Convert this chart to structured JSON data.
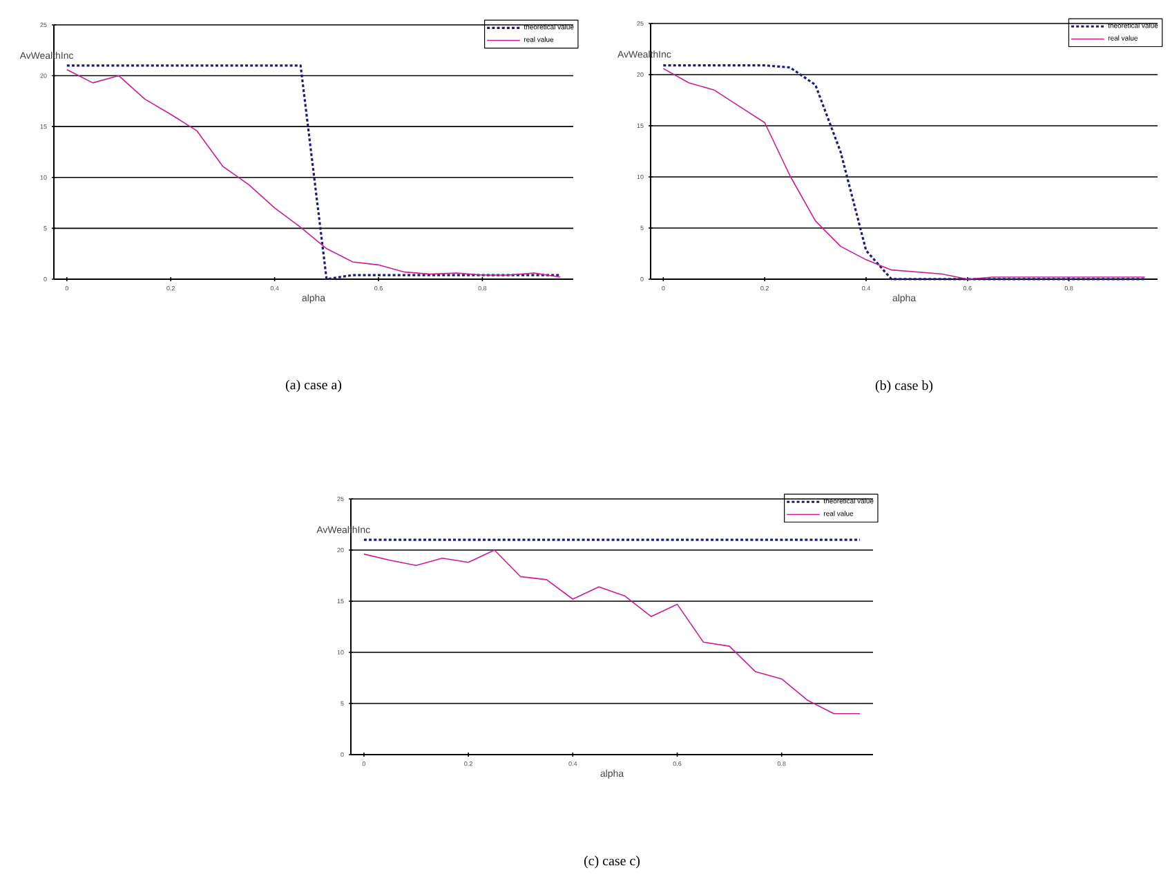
{
  "chart_data": [
    {
      "type": "line",
      "xlabel": "alpha",
      "ylabel": "AvWealthInc",
      "annotations": [
        "(a) case a)"
      ],
      "x": [
        0,
        0.05,
        0.1,
        0.15,
        0.2,
        0.25,
        0.3,
        0.35,
        0.4,
        0.45,
        0.5,
        0.55,
        0.6,
        0.65,
        0.7,
        0.75,
        0.8,
        0.85,
        0.9,
        0.95
      ],
      "xlim": [
        -0.025,
        0.975
      ],
      "xticks": [
        0,
        0.2,
        0.4,
        0.6,
        0.8
      ],
      "ylim": [
        0,
        25
      ],
      "yticks": [
        0,
        5,
        10,
        15,
        20,
        25
      ],
      "grid": "y",
      "legend": "top right",
      "series": [
        {
          "name": "theoretical value",
          "color": "#1a1a80",
          "line_style": "dashed",
          "values": [
            21,
            21,
            21,
            21,
            21,
            21,
            21,
            21,
            21,
            21,
            0,
            0.4,
            0.4,
            0.4,
            0.4,
            0.4,
            0.4,
            0.4,
            0.4,
            0.4
          ]
        },
        {
          "name": "real value",
          "color": "#cc1a99",
          "line_style": "solid",
          "values": [
            20.6,
            19.3,
            20,
            17.7,
            16.2,
            14.6,
            11.1,
            9.3,
            7,
            5.1,
            3,
            1.7,
            1.4,
            0.7,
            0.5,
            0.6,
            0.4,
            0.4,
            0.6,
            0.2
          ]
        }
      ]
    },
    {
      "type": "line",
      "xlabel": "alpha",
      "ylabel": "AvWealthInc",
      "annotations": [
        "(b) case b)"
      ],
      "x": [
        0,
        0.05,
        0.1,
        0.15,
        0.2,
        0.25,
        0.3,
        0.35,
        0.4,
        0.45,
        0.5,
        0.55,
        0.6,
        0.65,
        0.7,
        0.75,
        0.8,
        0.85,
        0.9,
        0.95
      ],
      "xlim": [
        -0.025,
        0.975
      ],
      "xticks": [
        0,
        0.2,
        0.4,
        0.6,
        0.8
      ],
      "ylim": [
        0,
        25
      ],
      "yticks": [
        0,
        5,
        10,
        15,
        20,
        25
      ],
      "grid": "y",
      "legend": "top right",
      "series": [
        {
          "name": "theoretical value",
          "color": "#1a1a80",
          "line_style": "dashed",
          "values": [
            20.9,
            20.9,
            20.9,
            20.9,
            20.9,
            20.7,
            19,
            12.4,
            2.8,
            0,
            0,
            0,
            0,
            0,
            0,
            0,
            0,
            0,
            0,
            0
          ]
        },
        {
          "name": "real value",
          "color": "#cc1a99",
          "line_style": "solid",
          "values": [
            20.6,
            19.2,
            18.5,
            16.9,
            15.3,
            10.1,
            5.7,
            3.2,
            1.9,
            0.9,
            0.7,
            0.5,
            0,
            0.2,
            0.2,
            0.2,
            0.2,
            0.2,
            0.2,
            0.2
          ]
        }
      ]
    },
    {
      "type": "line",
      "xlabel": "alpha",
      "ylabel": "AvWealthInc",
      "annotations": [
        "(c) case c)"
      ],
      "x": [
        0,
        0.05,
        0.1,
        0.15,
        0.2,
        0.25,
        0.3,
        0.35,
        0.4,
        0.45,
        0.5,
        0.55,
        0.6,
        0.65,
        0.7,
        0.75,
        0.8,
        0.85,
        0.9,
        0.95
      ],
      "xlim": [
        -0.025,
        0.975
      ],
      "xticks": [
        0,
        0.2,
        0.4,
        0.6,
        0.8
      ],
      "ylim": [
        0,
        25
      ],
      "yticks": [
        0,
        5,
        10,
        15,
        20,
        25
      ],
      "grid": "y",
      "legend": "top right",
      "series": [
        {
          "name": "theoretical value",
          "color": "#1a1a80",
          "line_style": "dashed",
          "values": [
            21,
            21,
            21,
            21,
            21,
            21,
            21,
            21,
            21,
            21,
            21,
            21,
            21,
            21,
            21,
            21,
            21,
            21,
            21,
            21
          ]
        },
        {
          "name": "real value",
          "color": "#cc1a99",
          "line_style": "solid",
          "values": [
            19.6,
            19,
            18.5,
            19.2,
            18.8,
            20,
            17.4,
            17.1,
            15.2,
            16.4,
            15.5,
            13.5,
            14.7,
            11,
            10.6,
            8.1,
            7.4,
            5.3,
            4,
            4
          ]
        }
      ]
    }
  ]
}
